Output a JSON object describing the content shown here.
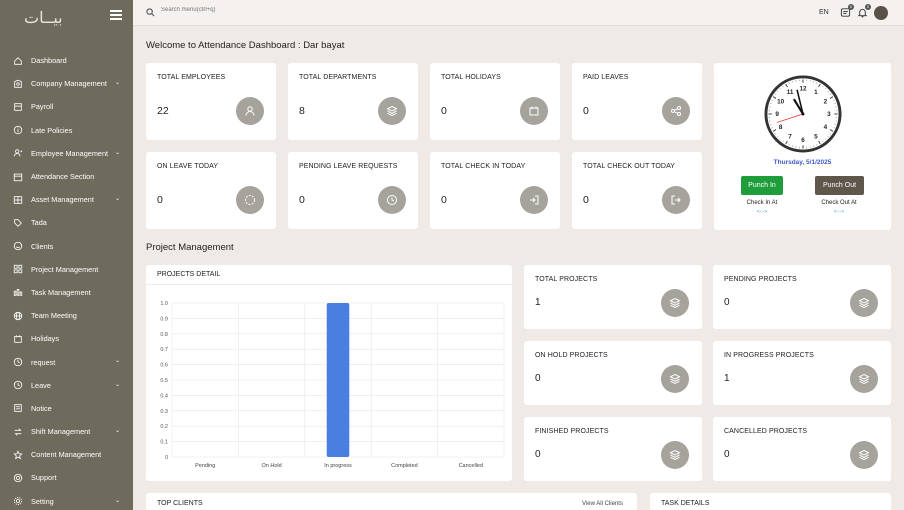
{
  "sidebar": {
    "logo": "بيــات",
    "items": [
      {
        "label": "Dashboard",
        "icon": "home-icon",
        "chev": false
      },
      {
        "label": "Company Management",
        "icon": "building-icon",
        "chev": true
      },
      {
        "label": "Payroll",
        "icon": "payroll-icon",
        "chev": false
      },
      {
        "label": "Late Policies",
        "icon": "info-icon",
        "chev": false
      },
      {
        "label": "Employee Management",
        "icon": "user-plus-icon",
        "chev": true
      },
      {
        "label": "Attendance Section",
        "icon": "calendar-icon",
        "chev": false
      },
      {
        "label": "Asset Management",
        "icon": "asset-icon",
        "chev": true
      },
      {
        "label": "Tada",
        "icon": "tag-icon",
        "chev": false
      },
      {
        "label": "Clients",
        "icon": "smile-icon",
        "chev": false
      },
      {
        "label": "Project Management",
        "icon": "grid-icon",
        "chev": false
      },
      {
        "label": "Task Management",
        "icon": "bars-icon",
        "chev": false
      },
      {
        "label": "Team Meeting",
        "icon": "globe-icon",
        "chev": false
      },
      {
        "label": "Holidays",
        "icon": "holiday-icon",
        "chev": false
      },
      {
        "label": "request",
        "icon": "request-icon",
        "chev": true
      },
      {
        "label": "Leave",
        "icon": "clock-icon",
        "chev": true
      },
      {
        "label": "Notice",
        "icon": "notice-icon",
        "chev": false
      },
      {
        "label": "Shift Management",
        "icon": "shift-icon",
        "chev": true
      },
      {
        "label": "Content Management",
        "icon": "star-icon",
        "chev": false
      },
      {
        "label": "Support",
        "icon": "support-icon",
        "chev": false
      },
      {
        "label": "Setting",
        "icon": "gear-icon",
        "chev": true
      }
    ]
  },
  "topbar": {
    "search_placeholder": "Search menu(ctrl+q)",
    "lang": "EN",
    "notif_count": "0",
    "msg_count": "0"
  },
  "welcome": "Welcome to Attendance Dashboard : Dar bayat",
  "stats": [
    {
      "label": "TOTAL EMPLOYEES",
      "value": "22",
      "icon": "user-icon"
    },
    {
      "label": "TOTAL DEPARTMENTS",
      "value": "8",
      "icon": "layers-icon"
    },
    {
      "label": "TOTAL HOLIDAYS",
      "value": "0",
      "icon": "holiday-icon"
    },
    {
      "label": "PAID LEAVES",
      "value": "0",
      "icon": "share-icon"
    },
    {
      "label": "ON LEAVE TODAY",
      "value": "0",
      "icon": "spinner-icon"
    },
    {
      "label": "PENDING LEAVE REQUESTS",
      "value": "0",
      "icon": "clock-icon"
    },
    {
      "label": "TOTAL CHECK IN TODAY",
      "value": "0",
      "icon": "login-icon"
    },
    {
      "label": "TOTAL CHECK OUT TODAY",
      "value": "0",
      "icon": "logout-icon"
    }
  ],
  "clock": {
    "date": "Thursday, 5/1/2025",
    "hour": 10,
    "minute": 57,
    "second": 42,
    "punch_in": "Punch In",
    "punch_out": "Punch Out",
    "check_in_label": "Check In At",
    "check_out_label": "Check Out At",
    "check_in_value": "<-:->",
    "check_out_value": "<-:->",
    "numbers": [
      "12",
      "1",
      "2",
      "3",
      "4",
      "5",
      "6",
      "7",
      "8",
      "9",
      "10",
      "11"
    ]
  },
  "project_section": {
    "title": "Project Management",
    "detail_title": "PROJECTS DETAIL",
    "cards": [
      {
        "label": "TOTAL PROJECTS",
        "value": "1"
      },
      {
        "label": "PENDING PROJECTS",
        "value": "0"
      },
      {
        "label": "ON HOLD PROJECTS",
        "value": "0"
      },
      {
        "label": "IN PROGRESS PROJECTS",
        "value": "1"
      },
      {
        "label": "FINISHED PROJECTS",
        "value": "0"
      },
      {
        "label": "CANCELLED PROJECTS",
        "value": "0"
      }
    ]
  },
  "chart_data": {
    "type": "bar",
    "categories": [
      "Pending",
      "On Hold",
      "In progress",
      "Completed",
      "Cancelled"
    ],
    "values": [
      0,
      0,
      1,
      0,
      0
    ],
    "ylim": [
      0,
      1
    ],
    "yticks": [
      "0",
      "0.1",
      "0.2",
      "0.3",
      "0.4",
      "0.5",
      "0.6",
      "0.7",
      "0.8",
      "0.9",
      "1.0"
    ],
    "grid": true,
    "bar_color": "#4a7fe0"
  },
  "bottom": {
    "top_clients": "TOP CLIENTS",
    "view_all": "View All Clients",
    "task_details": "TASK DETAILS"
  },
  "colors": {
    "sidebar": "#6e6a5c",
    "icon_circle": "#a6a29c",
    "punch_in": "#1f9d3a",
    "punch_out": "#5e574a",
    "date": "#3b5bcc"
  }
}
